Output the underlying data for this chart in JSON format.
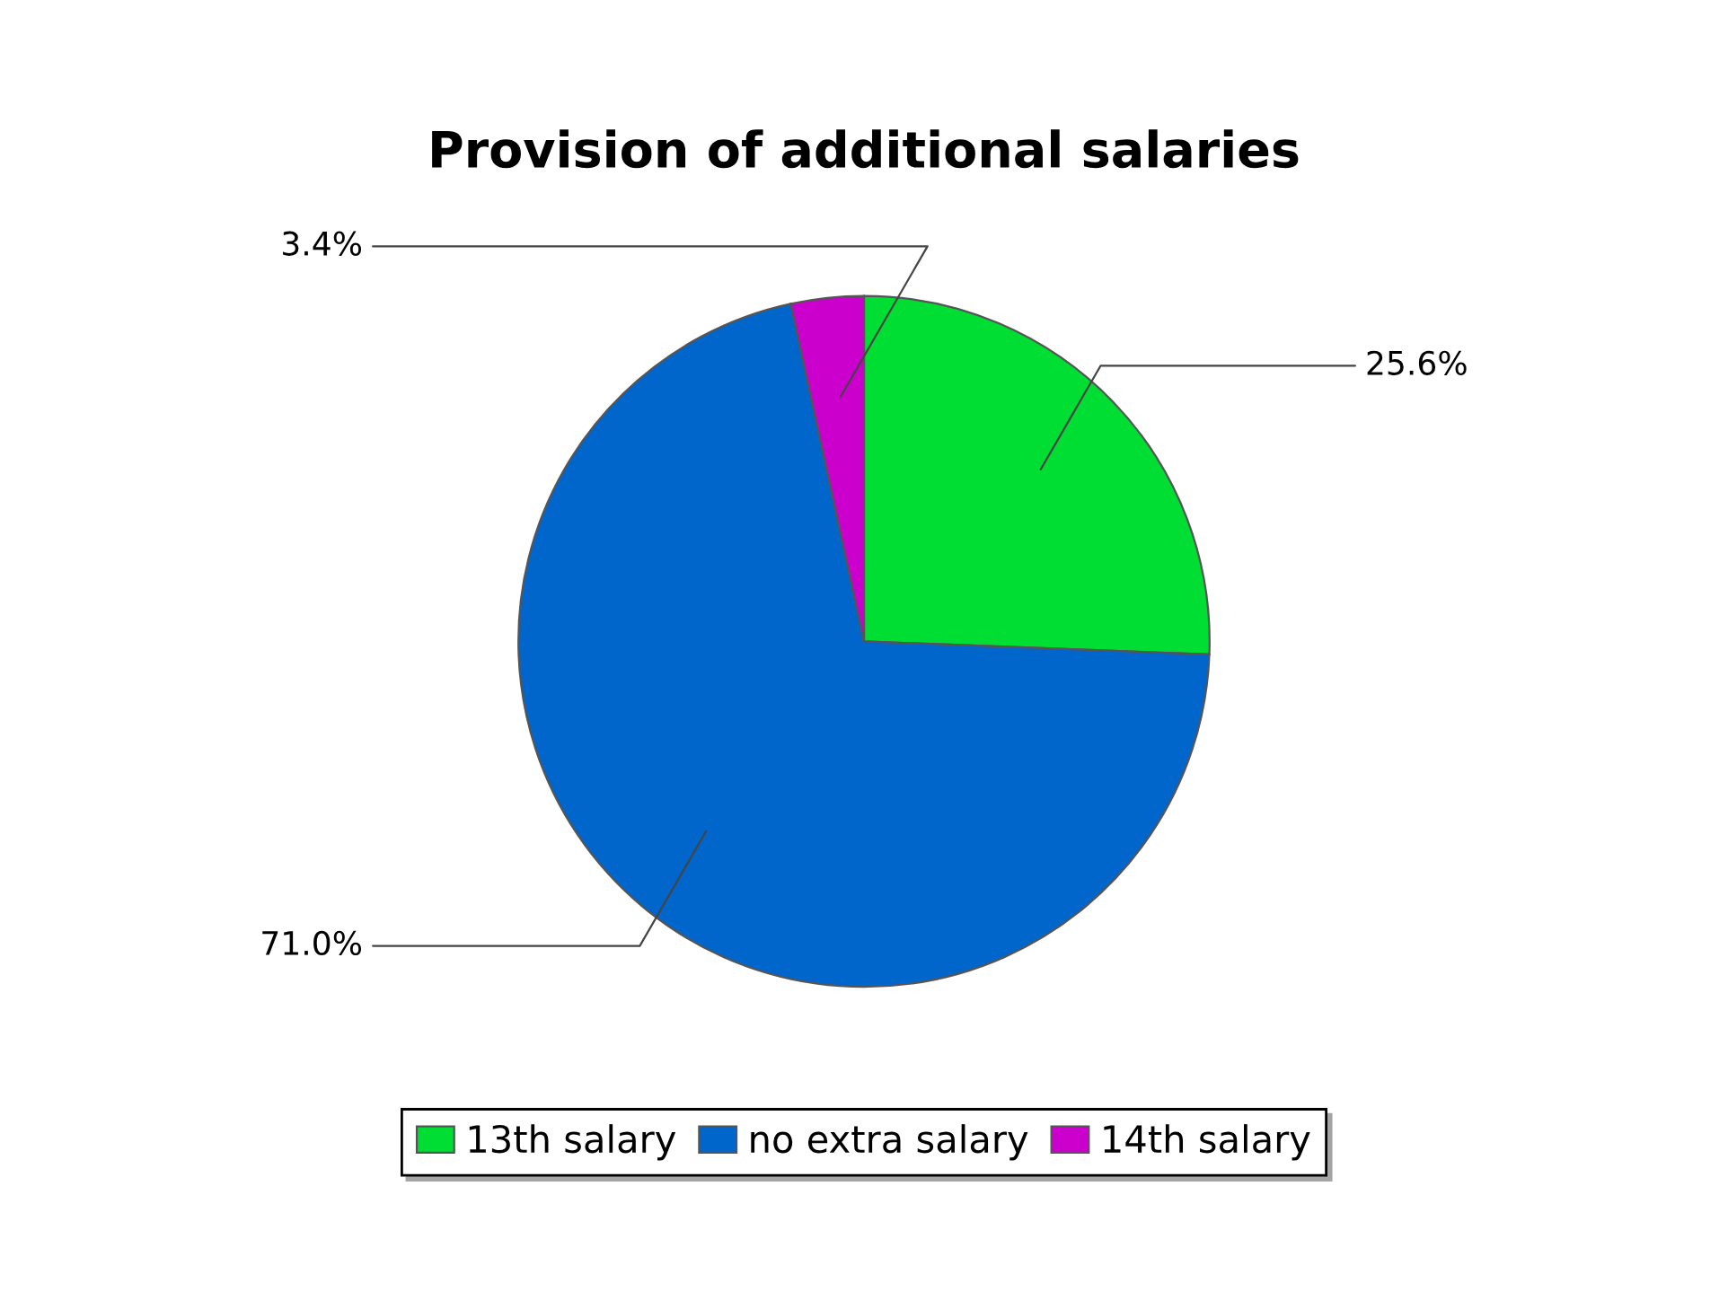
{
  "chart_data": {
    "type": "pie",
    "title": "Provision of additional salaries",
    "categories": [
      "13th salary",
      "no extra salary",
      "14th salary"
    ],
    "values": [
      25.6,
      71.0,
      3.4
    ],
    "value_labels": [
      "25.6%",
      "71.0%",
      "3.4%"
    ],
    "colors": [
      "#00dd33",
      "#0066cc",
      "#cc00cc"
    ],
    "legend": "bottom"
  }
}
